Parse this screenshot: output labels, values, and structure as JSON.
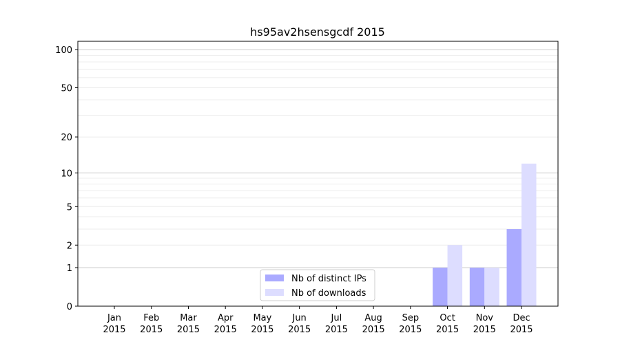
{
  "chart_data": {
    "type": "bar",
    "title": "hs95av2hsensgcdf 2015",
    "xlabel": "",
    "ylabel": "",
    "yscale": "symlog",
    "ylim": [
      0,
      116
    ],
    "yticks": [
      0,
      1,
      2,
      5,
      10,
      20,
      50,
      100
    ],
    "ytick_labels": [
      "0",
      "1",
      "2",
      "5",
      "10",
      "20",
      "50",
      "100"
    ],
    "grid": true,
    "legend_position": "bottom-center",
    "categories": [
      "Jan\n2015",
      "Feb\n2015",
      "Mar\n2015",
      "Apr\n2015",
      "May\n2015",
      "Jun\n2015",
      "Jul\n2015",
      "Aug\n2015",
      "Sep\n2015",
      "Oct\n2015",
      "Nov\n2015",
      "Dec\n2015"
    ],
    "series": [
      {
        "name": "Nb of distinct IPs",
        "color": "#aaaaff",
        "values": [
          0,
          0,
          0,
          0,
          0,
          0,
          0,
          0,
          0,
          1,
          1,
          3
        ]
      },
      {
        "name": "Nb of downloads",
        "color": "#ddddff",
        "values": [
          0,
          0,
          0,
          0,
          0,
          0,
          0,
          0,
          0,
          2,
          1,
          12
        ]
      }
    ]
  }
}
